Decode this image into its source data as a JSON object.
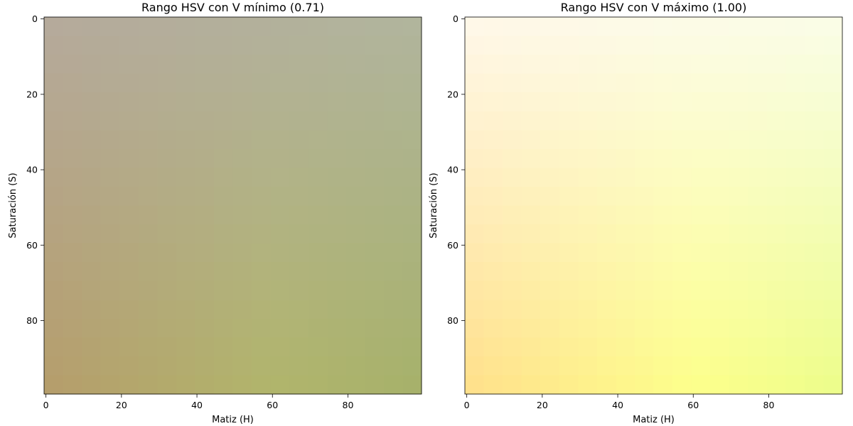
{
  "chart_data": [
    {
      "type": "heatmap",
      "title": "Rango HSV con V mínimo (0.71)",
      "xlabel": "Matiz (H)",
      "ylabel": "Saturación (S)",
      "xlim": [
        -0.5,
        99.5
      ],
      "ylim": [
        99.5,
        -0.5
      ],
      "xticks": [
        0,
        20,
        40,
        60,
        80
      ],
      "yticks": [
        0,
        20,
        40,
        60,
        80
      ],
      "grid": false,
      "colors": {
        "top_left": "#b5aa9c",
        "top_right": "#b1b59d",
        "bottom_left": "#b59d6b",
        "bottom_right": "#a6b16a",
        "mid_bottom": "#b1b56b"
      }
    },
    {
      "type": "heatmap",
      "title": "Rango HSV con V máximo (1.00)",
      "xlabel": "Matiz (H)",
      "ylabel": "Saturación (S)",
      "xlim": [
        -0.5,
        99.5
      ],
      "ylim": [
        99.5,
        -0.5
      ],
      "xticks": [
        0,
        20,
        40,
        60,
        80
      ],
      "yticks": [
        0,
        20,
        40,
        60,
        80
      ],
      "grid": false,
      "colors": {
        "top_left": "#fff8ea",
        "top_right": "#fafde8",
        "bottom_left": "#ffdf8a",
        "bottom_right": "#ecfd8a",
        "mid_bottom": "#fdff8a"
      }
    }
  ]
}
